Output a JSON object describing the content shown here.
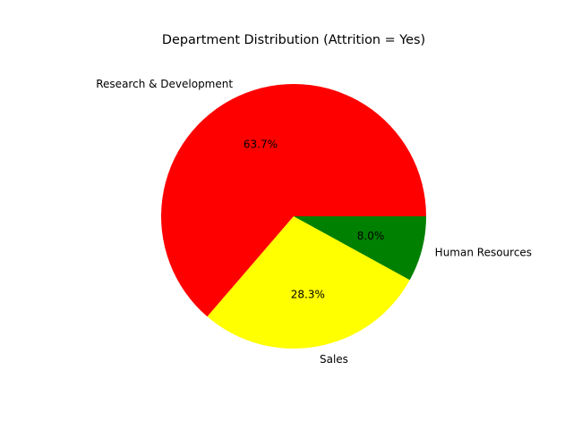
{
  "chart_data": {
    "type": "pie",
    "title": "Department Distribution (Attrition = Yes)",
    "categories": [
      "Research & Development",
      "Sales",
      "Human Resources"
    ],
    "values": [
      63.7,
      28.3,
      8.0
    ],
    "percent_labels": [
      "63.7%",
      "28.3%",
      "8.0%"
    ],
    "colors": [
      "#ff0000",
      "#ffff00",
      "#008000"
    ],
    "start_angle_deg": 0,
    "direction": "counterclockwise",
    "legend": false
  }
}
